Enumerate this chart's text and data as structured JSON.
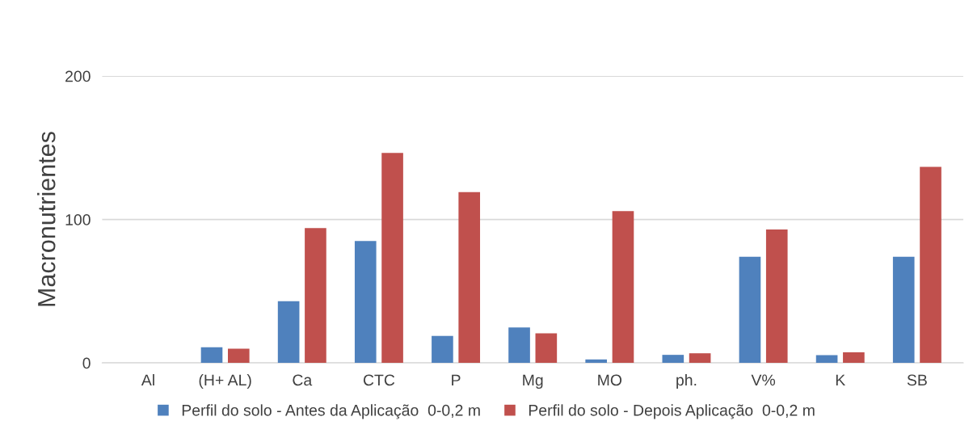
{
  "chart_data": {
    "type": "bar",
    "ylabel": "Macronutrientes",
    "categories": [
      "Al",
      "(H+ AL)",
      "Ca",
      "CTC",
      "P",
      "Mg",
      "MO",
      "ph.",
      "V%",
      "K",
      "SB"
    ],
    "series": [
      {
        "name": "Perfil do solo - Antes da Aplicação  0-0,2 m",
        "color": "#4f81bd",
        "values": [
          0,
          10.9,
          43,
          85,
          18.8,
          24.7,
          2.4,
          5.6,
          74,
          5.4,
          74
        ]
      },
      {
        "name": "Perfil do solo - Depois Aplicação  0-0,2 m",
        "color": "#c0504d",
        "values": [
          0,
          9.9,
          94,
          146.4,
          119,
          20.6,
          105.8,
          6.7,
          93,
          7.4,
          136.6
        ]
      }
    ],
    "ylim": [
      0,
      200
    ],
    "yticks": [
      0,
      100,
      200
    ],
    "grid": "y",
    "legend": "bottom"
  }
}
